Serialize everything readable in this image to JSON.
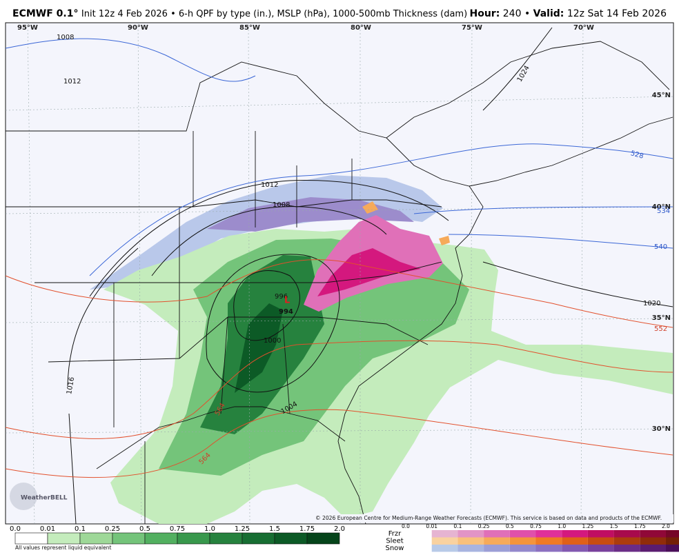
{
  "header": {
    "model": "ECMWF 0.1°",
    "description": "Init 12z 4 Feb 2026 • 6-h QPF by type (in.), MSLP (hPa), 1000-500mb Thickness (dam)",
    "hour_label": "Hour:",
    "hour": "240",
    "separator": "•",
    "valid_label": "Valid:",
    "valid": "12z Sat 14 Feb 2026"
  },
  "map": {
    "longitudes": [
      "95°W",
      "90°W",
      "85°W",
      "80°W",
      "75°W",
      "70°W"
    ],
    "latitudes": [
      "45°N",
      "40°N",
      "35°N",
      "30°N"
    ],
    "isobar_labels": [
      "1008",
      "1012",
      "1012",
      "1008",
      "1016",
      "1020",
      "1024",
      "1004",
      "1000",
      "996",
      "994"
    ],
    "low_marker": "L",
    "thickness_labels_blue": [
      "528",
      "534",
      "540"
    ],
    "thickness_labels_red": [
      "552",
      "564",
      "564"
    ],
    "credit": "© 2026 European Centre for Medium-Range Weather Forecasts (ECMWF). This service is based on data and products of the ECMWF.",
    "logo": "WeatherBELL"
  },
  "legend": {
    "rain": {
      "ticks": [
        "0.0",
        "0.01",
        "0.1",
        "0.25",
        "0.5",
        "0.75",
        "1.0",
        "1.25",
        "1.5",
        "1.75",
        "2.0"
      ],
      "colors": [
        "#ffffff",
        "#c4ecbc",
        "#9ed898",
        "#74c47a",
        "#52b060",
        "#38984c",
        "#26823e",
        "#176e32",
        "#0c5a26",
        "#05441a"
      ],
      "note": "All values represent liquid equivalent"
    },
    "types": {
      "names": [
        "Frzr",
        "Sleet",
        "Snow"
      ],
      "ticks": [
        "0.0",
        "0.01",
        "0.1",
        "0.25",
        "0.5",
        "0.75",
        "1.0",
        "1.25",
        "1.5",
        "1.75",
        "2.0"
      ],
      "colors": [
        [
          "#e6b4d2",
          "#e294c6",
          "#e070b8",
          "#e050aa",
          "#e0309a",
          "#d4187e",
          "#c00e62",
          "#a80a4c",
          "#900838",
          "#760628"
        ],
        [
          "#f9d2a0",
          "#f8c07c",
          "#f6aa5a",
          "#f4943c",
          "#f07a24",
          "#e06018",
          "#c84c12",
          "#ac3c0e",
          "#902c0a",
          "#742006"
        ],
        [
          "#b8cae8",
          "#a8b4e0",
          "#9c9ed6",
          "#9488cc",
          "#8c70c0",
          "#8258b0",
          "#78409c",
          "#6a2c86",
          "#5a1c70",
          "#4a0e58"
        ]
      ]
    }
  }
}
